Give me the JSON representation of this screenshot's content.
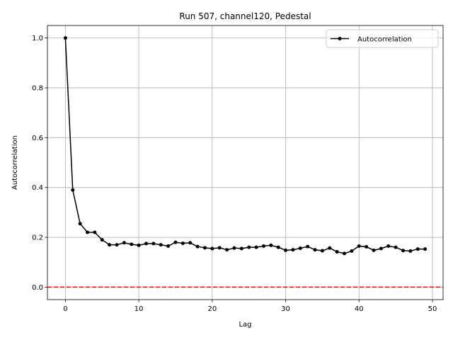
{
  "chart_data": {
    "type": "line",
    "title": "Run 507, channel120, Pedestal",
    "xlabel": "Lag",
    "ylabel": "Autocorrelation",
    "xlim": [
      -2.45,
      51.45
    ],
    "ylim": [
      -0.05,
      1.05
    ],
    "xticks": [
      0,
      10,
      20,
      30,
      40,
      50
    ],
    "yticks": [
      0.0,
      0.2,
      0.4,
      0.6,
      0.8,
      1.0
    ],
    "xtick_labels": [
      "0",
      "10",
      "20",
      "30",
      "40",
      "50"
    ],
    "ytick_labels": [
      "0.0",
      "0.2",
      "0.4",
      "0.6",
      "0.8",
      "1.0"
    ],
    "grid": true,
    "legend_position": "top-right",
    "series": [
      {
        "name": "Autocorrelation",
        "color": "#000000",
        "marker": "circle",
        "x": [
          0,
          1,
          2,
          3,
          4,
          5,
          6,
          7,
          8,
          9,
          10,
          11,
          12,
          13,
          14,
          15,
          16,
          17,
          18,
          19,
          20,
          21,
          22,
          23,
          24,
          25,
          26,
          27,
          28,
          29,
          30,
          31,
          32,
          33,
          34,
          35,
          36,
          37,
          38,
          39,
          40,
          41,
          42,
          43,
          44,
          45,
          46,
          47,
          48,
          49
        ],
        "values": [
          1.0,
          0.39,
          0.255,
          0.22,
          0.22,
          0.19,
          0.17,
          0.17,
          0.178,
          0.172,
          0.168,
          0.175,
          0.175,
          0.17,
          0.165,
          0.18,
          0.176,
          0.178,
          0.163,
          0.158,
          0.155,
          0.158,
          0.15,
          0.157,
          0.155,
          0.16,
          0.16,
          0.165,
          0.168,
          0.16,
          0.148,
          0.15,
          0.156,
          0.163,
          0.15,
          0.146,
          0.157,
          0.142,
          0.135,
          0.145,
          0.165,
          0.162,
          0.148,
          0.155,
          0.165,
          0.16,
          0.147,
          0.145,
          0.153,
          0.153
        ]
      }
    ],
    "reference_line": {
      "y": 0.0,
      "color": "#ff0000",
      "style": "dashed"
    }
  }
}
